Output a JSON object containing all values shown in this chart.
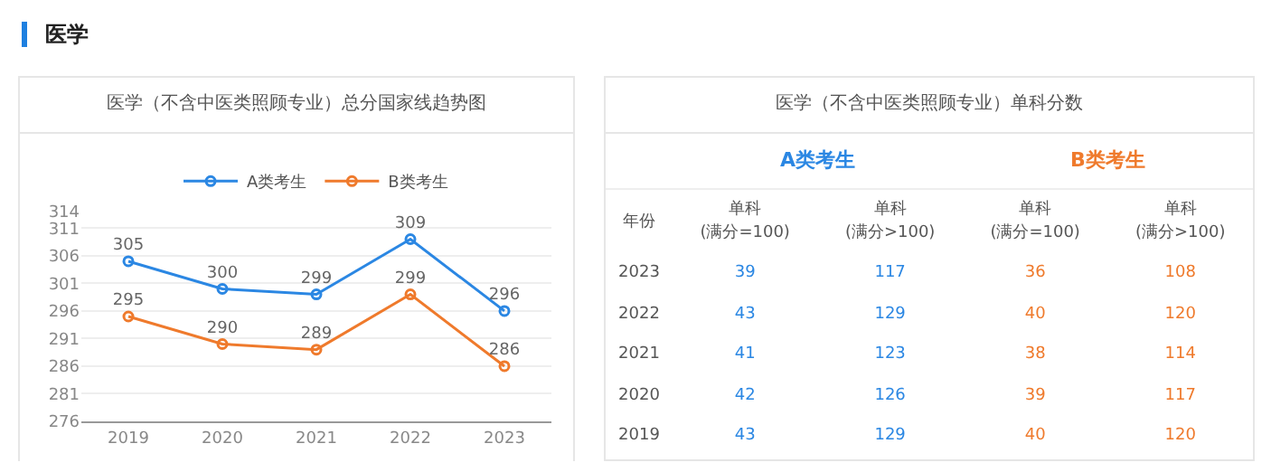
{
  "chart_data": [
    {
      "type": "line",
      "title": "医学（不含中医类照顾专业）总分国家线趋势图",
      "annotations": [
        "医学"
      ],
      "categories": [
        "2019",
        "2020",
        "2021",
        "2022",
        "2023"
      ],
      "series": [
        {
          "name": "A类考生",
          "color": "#2b87e3",
          "values": [
            305,
            300,
            299,
            309,
            296
          ]
        },
        {
          "name": "B类考生",
          "color": "#ef7a2c",
          "values": [
            295,
            290,
            289,
            299,
            286
          ]
        }
      ],
      "ylim": [
        276,
        314
      ],
      "yticks": [
        276,
        281,
        286,
        291,
        296,
        301,
        306,
        311,
        314
      ],
      "grid": "y",
      "legend": "top",
      "marker": "circle",
      "line_style": "solid",
      "data_labels": true
    },
    {
      "type": "heatmap",
      "title": "医学（不含中医类照顾专业）单科分数",
      "ylabel": "年份",
      "annotations": [
        "A类考生",
        "B类考生"
      ],
      "colors": [
        "#2b87e3",
        "#2b87e3",
        "#ef7a2c",
        "#ef7a2c"
      ],
      "categories": [
        "单科\n(满分=100)",
        "单科\n(满分>100)",
        "单科\n(满分=100)",
        "单科\n(满分>100)"
      ],
      "y_categories": [
        "2023",
        "2022",
        "2021",
        "2020",
        "2019"
      ],
      "cells": [
        [
          39,
          117,
          36,
          108
        ],
        [
          43,
          129,
          40,
          120
        ],
        [
          41,
          123,
          38,
          114
        ],
        [
          42,
          126,
          39,
          117
        ],
        [
          43,
          129,
          40,
          120
        ]
      ],
      "data_labels": true
    }
  ]
}
